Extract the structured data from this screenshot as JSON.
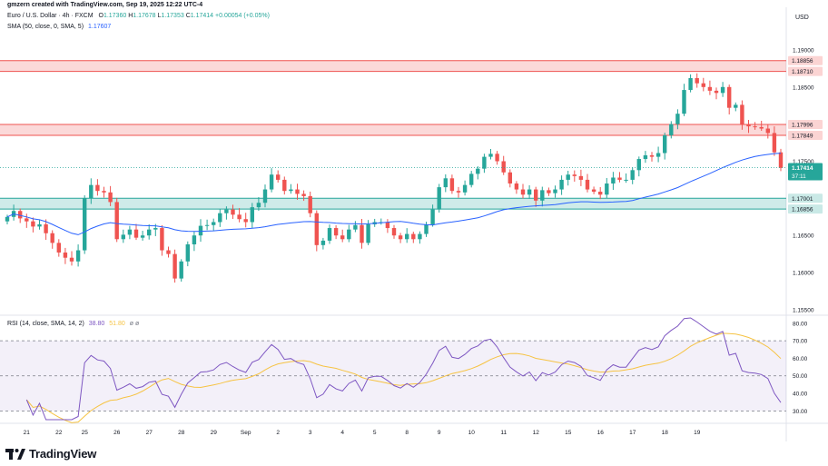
{
  "header": {
    "caption": "gmzern created with TradingView.com, Sep 19, 2025 12:22 UTC-4",
    "symbol": "Euro / U.S. Dollar · 4h · FXCM",
    "ohlc": {
      "o_label": "O",
      "o": "1.17360",
      "h_label": "H",
      "h": "1.17678",
      "l_label": "L",
      "l": "1.17353",
      "c_label": "C",
      "c": "1.17414",
      "chg": "+0.00054 (+0.05%)"
    },
    "sma_label": "SMA (50, close, 0, SMA, 5)",
    "sma_value": "1.17607",
    "rsi_label": "RSI (14, close, SMA, 14, 2)",
    "rsi_value": "38.80",
    "rsi_ma_value": "51.80",
    "rsi_extra": "ø ø",
    "currency": "USD",
    "countdown": "37:11",
    "logo": "TradingView"
  },
  "colors": {
    "up": "#26a69a",
    "down": "#ef5350",
    "sma": "#2962ff",
    "rsi": "#7e57c2",
    "rsi_ma": "#f6c343",
    "text": "#131722",
    "muted": "#787b86"
  },
  "chart_data": [
    {
      "type": "candlestick",
      "ylim": [
        1.1545,
        1.1955
      ],
      "y_ticks": [
        "1.19000",
        "1.18500",
        "1.17500",
        "1.16500",
        "1.16000",
        "1.15500"
      ],
      "x_ticks": [
        {
          "label": "21",
          "i": 3
        },
        {
          "label": "22",
          "i": 8
        },
        {
          "label": "25",
          "i": 12
        },
        {
          "label": "26",
          "i": 17
        },
        {
          "label": "27",
          "i": 22
        },
        {
          "label": "28",
          "i": 27
        },
        {
          "label": "29",
          "i": 32
        },
        {
          "label": "Sep",
          "i": 37
        },
        {
          "label": "2",
          "i": 42
        },
        {
          "label": "3",
          "i": 47
        },
        {
          "label": "4",
          "i": 52
        },
        {
          "label": "5",
          "i": 57
        },
        {
          "label": "8",
          "i": 62
        },
        {
          "label": "9",
          "i": 67
        },
        {
          "label": "10",
          "i": 72
        },
        {
          "label": "11",
          "i": 77
        },
        {
          "label": "12",
          "i": 82
        },
        {
          "label": "15",
          "i": 87
        },
        {
          "label": "16",
          "i": 92
        },
        {
          "label": "17",
          "i": 97
        },
        {
          "label": "18",
          "i": 102
        },
        {
          "label": "19",
          "i": 107
        }
      ],
      "zones": [
        {
          "from": 1.1871,
          "to": 1.18856,
          "color": "#ef5350",
          "labels": [
            "1.18856",
            "1.18710"
          ]
        },
        {
          "from": 1.17849,
          "to": 1.17996,
          "color": "#ef5350",
          "labels": [
            "1.17996",
            "1.17849"
          ]
        },
        {
          "from": 1.16856,
          "to": 1.17001,
          "color": "#26a69a",
          "labels": [
            "1.17001",
            "1.16856"
          ]
        }
      ],
      "current_price": "1.17414",
      "close_series": [
        1.1675,
        1.1683,
        1.1673,
        1.1669,
        1.1662,
        1.1665,
        1.1653,
        1.164,
        1.1627,
        1.162,
        1.1615,
        1.163,
        1.17,
        1.1718,
        1.171,
        1.1708,
        1.1695,
        1.1645,
        1.1651,
        1.1658,
        1.1647,
        1.165,
        1.1658,
        1.166,
        1.163,
        1.1625,
        1.1592,
        1.1615,
        1.1638,
        1.165,
        1.1663,
        1.1664,
        1.1668,
        1.168,
        1.1685,
        1.1678,
        1.1672,
        1.1668,
        1.1688,
        1.1694,
        1.1712,
        1.1732,
        1.1725,
        1.171,
        1.1712,
        1.1706,
        1.1703,
        1.168,
        1.1637,
        1.1643,
        1.166,
        1.165,
        1.1645,
        1.1658,
        1.1664,
        1.164,
        1.1665,
        1.1668,
        1.1668,
        1.166,
        1.165,
        1.1645,
        1.1652,
        1.1645,
        1.1652,
        1.1665,
        1.1685,
        1.1715,
        1.1727,
        1.171,
        1.1708,
        1.1718,
        1.1733,
        1.174,
        1.1756,
        1.176,
        1.175,
        1.1735,
        1.172,
        1.1712,
        1.1705,
        1.1712,
        1.1697,
        1.1711,
        1.1707,
        1.1712,
        1.1725,
        1.1732,
        1.173,
        1.1725,
        1.1712,
        1.1709,
        1.1705,
        1.172,
        1.1728,
        1.1725,
        1.1725,
        1.1738,
        1.1753,
        1.1758,
        1.1756,
        1.1761,
        1.1785,
        1.18,
        1.1814,
        1.1846,
        1.1862,
        1.1855,
        1.185,
        1.1845,
        1.1842,
        1.185,
        1.1822,
        1.1826,
        1.18,
        1.1797,
        1.1796,
        1.1794,
        1.1788,
        1.1762,
        1.1741
      ],
      "rsi_ylim": [
        25,
        83
      ],
      "rsi_ticks": [
        "80.00",
        "70.00",
        "60.00",
        "50.00",
        "40.00",
        "30.00"
      ],
      "rsi_levels": [
        70,
        50,
        30
      ]
    }
  ]
}
